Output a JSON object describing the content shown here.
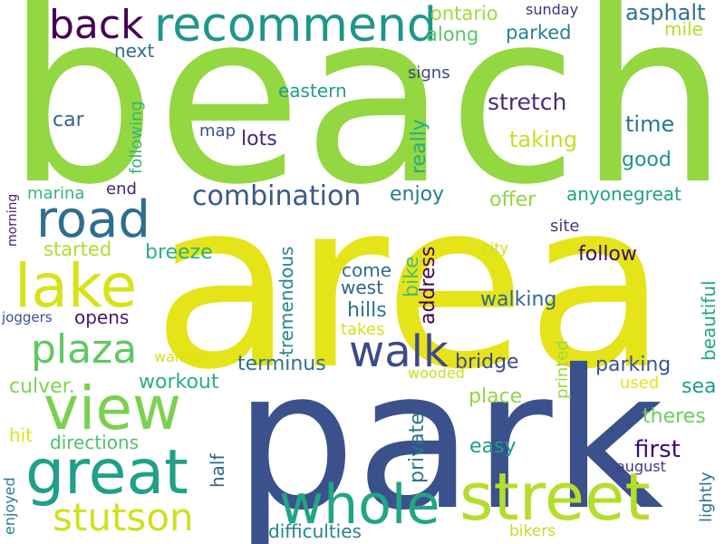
{
  "words": [
    {
      "key": "beach",
      "text": "beach",
      "color": "#93d741"
    },
    {
      "key": "area",
      "text": "area",
      "color": "#e5e419"
    },
    {
      "key": "park",
      "text": "park",
      "color": "#3b518b"
    },
    {
      "key": "whole",
      "text": "whole",
      "color": "#21a585"
    },
    {
      "key": "street",
      "text": "street",
      "color": "#b5de2b"
    },
    {
      "key": "great",
      "text": "great",
      "color": "#1fa088"
    },
    {
      "key": "view",
      "text": "view",
      "color": "#7ad151"
    },
    {
      "key": "road",
      "text": "road",
      "color": "#2e6e8e"
    },
    {
      "key": "lake",
      "text": "lake",
      "color": "#d8e219"
    },
    {
      "key": "plaza",
      "text": "plaza",
      "color": "#5ec962"
    },
    {
      "key": "walk",
      "text": "walk",
      "color": "#3e4989"
    },
    {
      "key": "recommend",
      "text": "recommend",
      "color": "#1f968b"
    },
    {
      "key": "back",
      "text": "back",
      "color": "#440154"
    },
    {
      "key": "stutson",
      "text": "stutson",
      "color": "#d0e11c"
    },
    {
      "key": "combination",
      "text": "combination",
      "color": "#38598c"
    },
    {
      "key": "ontario",
      "text": "ontario",
      "color": "#a0da39"
    },
    {
      "key": "sunday",
      "text": "sunday",
      "color": "#46337e"
    },
    {
      "key": "asphalt",
      "text": "asphalt",
      "color": "#2c728e"
    },
    {
      "key": "mile",
      "text": "mile",
      "color": "#b8de29"
    },
    {
      "key": "along",
      "text": "along",
      "color": "#56c667"
    },
    {
      "key": "parked",
      "text": "parked",
      "color": "#26828e"
    },
    {
      "key": "next",
      "text": "next",
      "color": "#2d708e"
    },
    {
      "key": "signs",
      "text": "signs",
      "color": "#414487"
    },
    {
      "key": "eastern",
      "text": "eastern",
      "color": "#1f9e89"
    },
    {
      "key": "stretch",
      "text": "stretch",
      "color": "#472d7b"
    },
    {
      "key": "car",
      "text": "car",
      "color": "#33638d"
    },
    {
      "key": "time",
      "text": "time",
      "color": "#2a788e"
    },
    {
      "key": "map",
      "text": "map",
      "color": "#3b528b"
    },
    {
      "key": "lots",
      "text": "lots",
      "color": "#482878"
    },
    {
      "key": "taking",
      "text": "taking",
      "color": "#c2df23"
    },
    {
      "key": "really",
      "text": "really",
      "color": "#27ad81"
    },
    {
      "key": "following",
      "text": "following",
      "color": "#34b679"
    },
    {
      "key": "good",
      "text": "good",
      "color": "#1f948c"
    },
    {
      "key": "end",
      "text": "end",
      "color": "#482475"
    },
    {
      "key": "marina",
      "text": "marina",
      "color": "#32b67a"
    },
    {
      "key": "morning",
      "text": "morning",
      "color": "#482071"
    },
    {
      "key": "enjoy",
      "text": "enjoy",
      "color": "#287c8e"
    },
    {
      "key": "offer",
      "text": "offer",
      "color": "#8fd744"
    },
    {
      "key": "anyonegreat",
      "text": "anyonegreat",
      "color": "#20a386"
    },
    {
      "key": "site",
      "text": "site",
      "color": "#453882"
    },
    {
      "key": "city",
      "text": "city",
      "color": "#c8e020"
    },
    {
      "key": "started",
      "text": "started",
      "color": "#b0dd2f"
    },
    {
      "key": "breeze",
      "text": "breeze",
      "color": "#2ab07f"
    },
    {
      "key": "bike",
      "text": "bike",
      "color": "#4ac16d"
    },
    {
      "key": "address",
      "text": "address",
      "color": "#440154"
    },
    {
      "key": "follow",
      "text": "follow",
      "color": "#3b0f70"
    },
    {
      "key": "come",
      "text": "come",
      "color": "#2e6f8e"
    },
    {
      "key": "west",
      "text": "west",
      "color": "#33628d"
    },
    {
      "key": "tremendous",
      "text": "tremendous",
      "color": "#25848e"
    },
    {
      "key": "walking",
      "text": "walking",
      "color": "#31678e"
    },
    {
      "key": "beautiful",
      "text": "beautiful",
      "color": "#22a884"
    },
    {
      "key": "hills",
      "text": "hills",
      "color": "#2b758e"
    },
    {
      "key": "joggers",
      "text": "joggers",
      "color": "#3d4e8a"
    },
    {
      "key": "opens",
      "text": "opens",
      "color": "#481769"
    },
    {
      "key": "takes",
      "text": "takes",
      "color": "#d2e21b"
    },
    {
      "key": "printed",
      "text": "printed",
      "color": "#9bd93c"
    },
    {
      "key": "walkers",
      "text": "walkers",
      "color": "#d8e219"
    },
    {
      "key": "terminus",
      "text": "terminus",
      "color": "#2c738e"
    },
    {
      "key": "bridge",
      "text": "bridge",
      "color": "#3e4a89"
    },
    {
      "key": "parking",
      "text": "parking",
      "color": "#3a548c"
    },
    {
      "key": "workout",
      "text": "workout",
      "color": "#29af7f"
    },
    {
      "key": "culver.",
      "text": "culver.",
      "color": "#7fd34e"
    },
    {
      "key": "wooded",
      "text": "wooded",
      "color": "#c5e021"
    },
    {
      "key": "sea",
      "text": "sea",
      "color": "#1f9a8a"
    },
    {
      "key": "used",
      "text": "used",
      "color": "#e2e418"
    },
    {
      "key": "place",
      "text": "place",
      "color": "#90d743"
    },
    {
      "key": "theres",
      "text": "theres",
      "color": "#6ccd5a"
    },
    {
      "key": "hit",
      "text": "hit",
      "color": "#e2e418"
    },
    {
      "key": "directions",
      "text": "directions",
      "color": "#4ec36b"
    },
    {
      "key": "half",
      "text": "half",
      "color": "#30698e"
    },
    {
      "key": "private",
      "text": "private",
      "color": "#2a768e"
    },
    {
      "key": "easy",
      "text": "easy",
      "color": "#1f9e89"
    },
    {
      "key": "first",
      "text": "first",
      "color": "#3b0f70"
    },
    {
      "key": "august",
      "text": "august",
      "color": "#453781"
    },
    {
      "key": "lightly",
      "text": "lightly",
      "color": "#2c728e"
    },
    {
      "key": "enjoyed",
      "text": "enjoyed",
      "color": "#287d8e"
    },
    {
      "key": "difficulties",
      "text": "difficulties",
      "color": "#25838e"
    },
    {
      "key": "bikers",
      "text": "bikers",
      "color": "#bddf26"
    }
  ]
}
